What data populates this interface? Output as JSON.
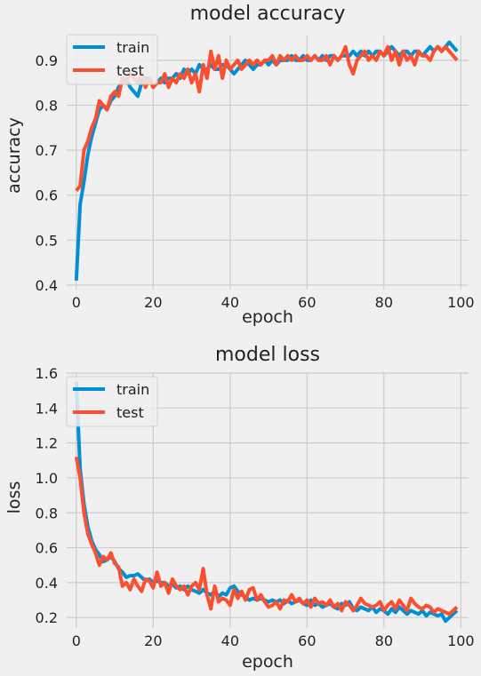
{
  "chart_data": [
    {
      "type": "line",
      "title": "model accuracy",
      "xlabel": "epoch",
      "ylabel": "accuracy",
      "xlim": [
        -2.5,
        102
      ],
      "ylim": [
        0.39,
        0.955
      ],
      "xticks": [
        0,
        20,
        40,
        60,
        80,
        100
      ],
      "yticks": [
        0.4,
        0.5,
        0.6,
        0.7,
        0.8,
        0.9
      ],
      "xtick_labels": [
        "0",
        "20",
        "40",
        "60",
        "80",
        "100"
      ],
      "ytick_labels": [
        "0.4",
        "0.5",
        "0.6",
        "0.7",
        "0.8",
        "0.9"
      ],
      "grid": true,
      "legend_position": "top-left",
      "series": [
        {
          "name": "train",
          "color": "#008fd5",
          "values": [
            0.41,
            0.58,
            0.63,
            0.69,
            0.73,
            0.76,
            0.79,
            0.8,
            0.79,
            0.81,
            0.82,
            0.84,
            0.85,
            0.86,
            0.84,
            0.83,
            0.82,
            0.85,
            0.86,
            0.86,
            0.84,
            0.85,
            0.86,
            0.85,
            0.86,
            0.86,
            0.87,
            0.86,
            0.88,
            0.87,
            0.88,
            0.87,
            0.89,
            0.88,
            0.88,
            0.89,
            0.88,
            0.88,
            0.89,
            0.89,
            0.88,
            0.87,
            0.88,
            0.89,
            0.9,
            0.89,
            0.88,
            0.89,
            0.89,
            0.9,
            0.89,
            0.9,
            0.89,
            0.9,
            0.9,
            0.9,
            0.91,
            0.9,
            0.9,
            0.91,
            0.9,
            0.9,
            0.91,
            0.9,
            0.91,
            0.9,
            0.91,
            0.91,
            0.9,
            0.91,
            0.91,
            0.91,
            0.92,
            0.91,
            0.92,
            0.91,
            0.92,
            0.91,
            0.92,
            0.92,
            0.91,
            0.92,
            0.93,
            0.92,
            0.91,
            0.92,
            0.92,
            0.91,
            0.92,
            0.92,
            0.91,
            0.92,
            0.93,
            0.92,
            0.93,
            0.92,
            0.93,
            0.94,
            0.93,
            0.92
          ]
        },
        {
          "name": "test",
          "color": "#fc4f30",
          "values": [
            0.61,
            0.62,
            0.7,
            0.72,
            0.75,
            0.77,
            0.81,
            0.8,
            0.79,
            0.82,
            0.83,
            0.82,
            0.86,
            0.85,
            0.87,
            0.86,
            0.85,
            0.87,
            0.84,
            0.86,
            0.84,
            0.85,
            0.85,
            0.87,
            0.84,
            0.86,
            0.85,
            0.87,
            0.86,
            0.88,
            0.85,
            0.87,
            0.83,
            0.89,
            0.86,
            0.92,
            0.88,
            0.91,
            0.86,
            0.9,
            0.88,
            0.89,
            0.9,
            0.88,
            0.89,
            0.9,
            0.89,
            0.9,
            0.89,
            0.9,
            0.9,
            0.91,
            0.89,
            0.91,
            0.9,
            0.91,
            0.9,
            0.91,
            0.9,
            0.9,
            0.91,
            0.9,
            0.91,
            0.9,
            0.9,
            0.91,
            0.89,
            0.91,
            0.9,
            0.91,
            0.93,
            0.89,
            0.87,
            0.9,
            0.91,
            0.92,
            0.9,
            0.91,
            0.9,
            0.92,
            0.91,
            0.93,
            0.9,
            0.92,
            0.89,
            0.92,
            0.9,
            0.91,
            0.89,
            0.92,
            0.91,
            0.91,
            0.9,
            0.92,
            0.93,
            0.92,
            0.93,
            0.92,
            0.91,
            0.9
          ]
        }
      ]
    },
    {
      "type": "line",
      "title": "model loss",
      "xlabel": "epoch",
      "ylabel": "loss",
      "xlim": [
        -2.5,
        102
      ],
      "ylim": [
        0.14,
        1.6
      ],
      "xticks": [
        0,
        20,
        40,
        60,
        80,
        100
      ],
      "yticks": [
        0.2,
        0.4,
        0.6,
        0.8,
        1.0,
        1.2,
        1.4,
        1.6
      ],
      "xtick_labels": [
        "0",
        "20",
        "40",
        "60",
        "80",
        "100"
      ],
      "ytick_labels": [
        "0.2",
        "0.4",
        "0.6",
        "0.8",
        "1.0",
        "1.2",
        "1.4",
        "1.6"
      ],
      "grid": true,
      "legend_position": "top-left",
      "series": [
        {
          "name": "train",
          "color": "#008fd5",
          "values": [
            1.55,
            1.05,
            0.85,
            0.72,
            0.64,
            0.59,
            0.56,
            0.52,
            0.53,
            0.55,
            0.52,
            0.48,
            0.46,
            0.43,
            0.44,
            0.44,
            0.45,
            0.43,
            0.41,
            0.42,
            0.4,
            0.41,
            0.4,
            0.4,
            0.38,
            0.39,
            0.37,
            0.38,
            0.36,
            0.38,
            0.36,
            0.35,
            0.34,
            0.36,
            0.34,
            0.33,
            0.35,
            0.32,
            0.34,
            0.33,
            0.37,
            0.38,
            0.35,
            0.33,
            0.32,
            0.3,
            0.31,
            0.3,
            0.31,
            0.3,
            0.29,
            0.3,
            0.29,
            0.3,
            0.28,
            0.3,
            0.28,
            0.29,
            0.3,
            0.28,
            0.27,
            0.3,
            0.27,
            0.28,
            0.26,
            0.27,
            0.28,
            0.26,
            0.25,
            0.28,
            0.27,
            0.29,
            0.25,
            0.24,
            0.26,
            0.25,
            0.24,
            0.26,
            0.23,
            0.25,
            0.24,
            0.22,
            0.25,
            0.23,
            0.26,
            0.24,
            0.22,
            0.24,
            0.23,
            0.22,
            0.24,
            0.21,
            0.23,
            0.22,
            0.21,
            0.22,
            0.18,
            0.2,
            0.22,
            0.24
          ]
        },
        {
          "name": "test",
          "color": "#fc4f30",
          "values": [
            1.12,
            1.0,
            0.8,
            0.68,
            0.62,
            0.57,
            0.5,
            0.55,
            0.53,
            0.57,
            0.51,
            0.49,
            0.38,
            0.4,
            0.36,
            0.42,
            0.38,
            0.35,
            0.42,
            0.41,
            0.37,
            0.46,
            0.38,
            0.4,
            0.34,
            0.42,
            0.38,
            0.36,
            0.38,
            0.33,
            0.38,
            0.4,
            0.36,
            0.48,
            0.33,
            0.25,
            0.38,
            0.29,
            0.31,
            0.3,
            0.27,
            0.36,
            0.31,
            0.35,
            0.3,
            0.36,
            0.37,
            0.3,
            0.33,
            0.29,
            0.26,
            0.27,
            0.29,
            0.25,
            0.3,
            0.29,
            0.33,
            0.29,
            0.31,
            0.28,
            0.3,
            0.26,
            0.31,
            0.28,
            0.29,
            0.27,
            0.3,
            0.26,
            0.28,
            0.24,
            0.29,
            0.27,
            0.24,
            0.27,
            0.31,
            0.28,
            0.27,
            0.26,
            0.27,
            0.29,
            0.24,
            0.27,
            0.29,
            0.25,
            0.3,
            0.27,
            0.24,
            0.31,
            0.28,
            0.26,
            0.25,
            0.27,
            0.26,
            0.23,
            0.25,
            0.24,
            0.23,
            0.22,
            0.24,
            0.26
          ]
        }
      ]
    }
  ]
}
